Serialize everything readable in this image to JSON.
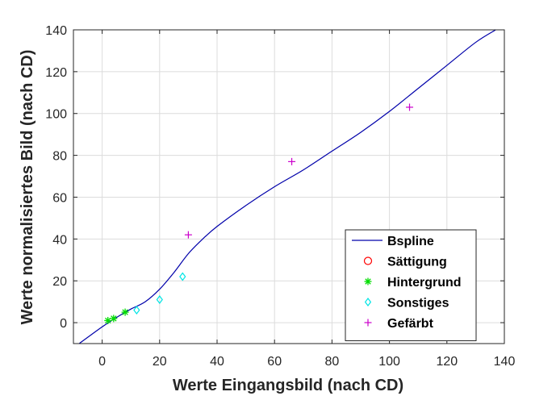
{
  "chart_data": {
    "type": "line",
    "xlabel": "Werte Eingangsbild (nach CD)",
    "ylabel": "Werte normalisiertes Bild (nach CD)",
    "xlim": [
      -10,
      140
    ],
    "ylim": [
      -10,
      140
    ],
    "xticks": [
      0,
      20,
      40,
      60,
      80,
      100,
      120,
      140
    ],
    "yticks": [
      0,
      20,
      40,
      60,
      80,
      100,
      120,
      140
    ],
    "grid": true,
    "legend_position": "bottom-right",
    "series": [
      {
        "name": "Bspline",
        "kind": "line",
        "color": "#0000AA",
        "points": [
          [
            -8,
            -10
          ],
          [
            0,
            -2
          ],
          [
            5,
            2.5
          ],
          [
            10,
            6.5
          ],
          [
            15,
            10
          ],
          [
            20,
            16
          ],
          [
            25,
            24
          ],
          [
            30,
            33
          ],
          [
            35,
            40
          ],
          [
            40,
            46
          ],
          [
            50,
            56
          ],
          [
            60,
            65
          ],
          [
            70,
            73
          ],
          [
            80,
            82
          ],
          [
            90,
            91
          ],
          [
            100,
            101
          ],
          [
            110,
            112
          ],
          [
            120,
            123
          ],
          [
            130,
            134
          ],
          [
            137,
            140
          ]
        ]
      },
      {
        "name": "Sättigung",
        "kind": "marker",
        "marker": "circle",
        "color": "#FF0000",
        "points": []
      },
      {
        "name": "Hintergrund",
        "kind": "marker",
        "marker": "asterisk",
        "color": "#00DD00",
        "points": [
          [
            2,
            1
          ],
          [
            4,
            2
          ],
          [
            8,
            5
          ]
        ]
      },
      {
        "name": "Sonstiges",
        "kind": "marker",
        "marker": "diamond",
        "color": "#00E5E5",
        "points": [
          [
            12,
            6
          ],
          [
            20,
            11
          ],
          [
            28,
            22
          ]
        ]
      },
      {
        "name": "Gefärbt",
        "kind": "marker",
        "marker": "plus",
        "color": "#CC00CC",
        "points": [
          [
            30,
            42
          ],
          [
            66,
            77
          ],
          [
            107,
            103
          ]
        ]
      }
    ]
  }
}
